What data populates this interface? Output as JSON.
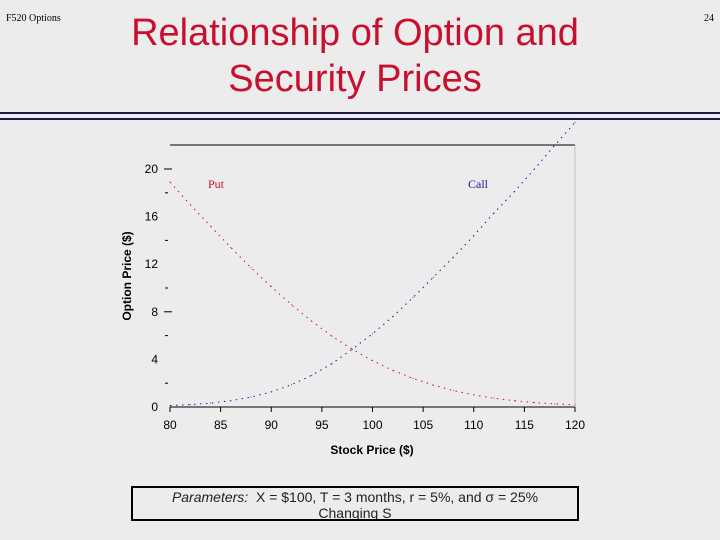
{
  "slide": {
    "course_label": "F520 Options",
    "page_number": "24",
    "title_line1": "Relationship of Option and",
    "title_line2": "Security Prices",
    "title_color": "#c8102e"
  },
  "caption": {
    "label": "Parameters:",
    "line1": "X = $100, T = 3 months, r = 5%, and σ = 25%",
    "line2": "Changing S"
  },
  "chart_data": {
    "type": "line",
    "xlabel": "Stock Price ($)",
    "ylabel": "Option Price ($)",
    "xlim": [
      80,
      120
    ],
    "ylim": [
      0,
      22
    ],
    "x_ticks": [
      80,
      85,
      90,
      95,
      100,
      105,
      110,
      115,
      120
    ],
    "y_ticks_labeled": [
      0,
      4,
      8,
      12,
      16,
      20
    ],
    "y_ticks_minor": [
      2,
      6,
      10,
      14,
      18
    ],
    "grid": false,
    "series": [
      {
        "name": "Put",
        "color": "#c8102e",
        "x": [
          80,
          82,
          84,
          86,
          88,
          90,
          92,
          94,
          96,
          98,
          100,
          102,
          104,
          106,
          108,
          110,
          112,
          114,
          116,
          118,
          120
        ],
        "values": [
          18.9,
          17.0,
          15.2,
          13.4,
          11.7,
          10.1,
          8.6,
          7.2,
          5.95,
          4.85,
          3.9,
          3.08,
          2.4,
          1.84,
          1.38,
          1.02,
          0.74,
          0.53,
          0.37,
          0.26,
          0.18
        ]
      },
      {
        "name": "Call",
        "color": "#1a1aa0",
        "x": [
          80,
          82,
          84,
          86,
          88,
          90,
          92,
          94,
          96,
          98,
          100,
          102,
          104,
          106,
          108,
          110,
          112,
          114,
          116,
          118,
          120
        ],
        "values": [
          0.12,
          0.2,
          0.33,
          0.53,
          0.83,
          1.27,
          1.87,
          2.66,
          3.65,
          4.86,
          6.15,
          7.6,
          9.2,
          10.9,
          12.6,
          14.4,
          16.3,
          18.1,
          20.0,
          22.0,
          23.9
        ]
      }
    ]
  }
}
